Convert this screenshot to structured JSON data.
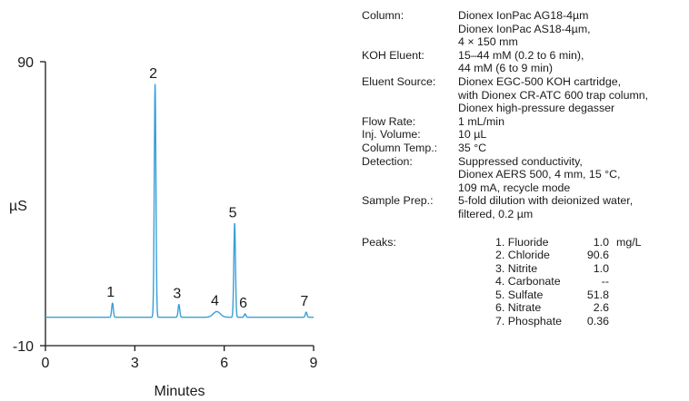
{
  "chart_data": {
    "type": "line",
    "ylabel": "µS",
    "xlabel": "Minutes",
    "xlim": [
      0,
      9
    ],
    "ylim": [
      -10,
      90
    ],
    "x_ticks": [
      0,
      3,
      6,
      9
    ],
    "y_ticks": [
      90,
      -10
    ],
    "baseline": 0,
    "series_color": "#3a9fd8",
    "peaks": [
      {
        "label": "1",
        "rt": 2.25,
        "height": 5
      },
      {
        "label": "2",
        "rt": 3.68,
        "height": 82
      },
      {
        "label": "3",
        "rt": 4.48,
        "height": 4.5
      },
      {
        "label": "4",
        "rt": 5.75,
        "height": 2
      },
      {
        "label": "5",
        "rt": 6.35,
        "height": 33
      },
      {
        "label": "6",
        "rt": 6.7,
        "height": 1.2
      },
      {
        "label": "7",
        "rt": 8.75,
        "height": 1.8
      }
    ]
  },
  "conditions": [
    {
      "label": "Column:",
      "lines": [
        "Dionex IonPac AG18-4µm",
        "Dionex IonPac AS18-4µm,",
        "4 × 150 mm"
      ]
    },
    {
      "label": "KOH Eluent:",
      "lines": [
        "15–44 mM (0.2 to 6 min),",
        "44 mM (6 to 9 min)"
      ]
    },
    {
      "label": "Eluent Source:",
      "lines": [
        "Dionex EGC-500 KOH cartridge,",
        "with Dionex CR-ATC 600 trap column,",
        "Dionex high-pressure degasser"
      ]
    },
    {
      "label": "Flow Rate:",
      "lines": [
        "1 mL/min"
      ]
    },
    {
      "label": "Inj. Volume:",
      "lines": [
        "10 µL"
      ]
    },
    {
      "label": "Column Temp.:",
      "lines": [
        "35 °C"
      ]
    },
    {
      "label": "Detection:",
      "lines": [
        "Suppressed conductivity,",
        "Dionex AERS 500, 4 mm, 15 °C,",
        "109 mA, recycle mode"
      ]
    },
    {
      "label": "Sample Prep.:",
      "lines": [
        "5-fold dilution with deionized water,",
        "filtered, 0.2 µm"
      ]
    }
  ],
  "peaks_table": {
    "label": "Peaks:",
    "rows": [
      {
        "name": "1. Fluoride",
        "amount": "1.0",
        "unit": "mg/L"
      },
      {
        "name": "2. Chloride",
        "amount": "90.6",
        "unit": ""
      },
      {
        "name": "3. Nitrite",
        "amount": "1.0",
        "unit": ""
      },
      {
        "name": "4. Carbonate",
        "amount": "--",
        "unit": ""
      },
      {
        "name": "5. Sulfate",
        "amount": "51.8",
        "unit": ""
      },
      {
        "name": "6. Nitrate",
        "amount": "2.6",
        "unit": ""
      },
      {
        "name": "7. Phosphate",
        "amount": "0.36",
        "unit": ""
      }
    ]
  }
}
